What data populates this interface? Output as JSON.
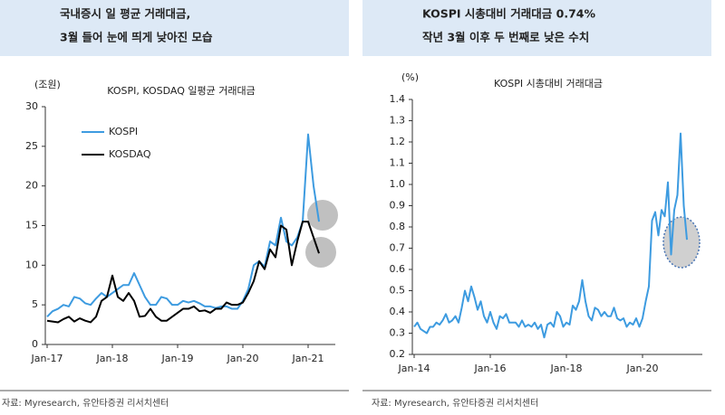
{
  "headers": [
    [
      "국내증시 일 평균 거래대금,",
      "3월 들어 눈에 띄게 낮아진 모습"
    ],
    [
      "KOSPI 시총대비 거래대금 0.74%",
      "작년 3월 이후 두 번째로 낮은 수치"
    ]
  ],
  "sources": [
    "자료: Myresearch, 유안타증권 리서치센터",
    "자료: Myresearch, 유안타증권 리서치센터"
  ],
  "chart_data": [
    {
      "type": "line",
      "title": "KOSPI, KOSDAQ 일평균 거래대금",
      "y_unit": "(조원)",
      "legend": "upper left",
      "categories": [
        "Jan-17",
        null,
        null,
        null,
        null,
        null,
        null,
        null,
        null,
        null,
        null,
        null,
        "Jan-18",
        null,
        null,
        null,
        null,
        null,
        null,
        null,
        null,
        null,
        null,
        null,
        "Jan-19",
        null,
        null,
        null,
        null,
        null,
        null,
        null,
        null,
        null,
        null,
        null,
        "Jan-20",
        null,
        null,
        null,
        null,
        null,
        null,
        null,
        null,
        null,
        null,
        null,
        "Jan-21",
        null,
        null
      ],
      "ylim": [
        0,
        30
      ],
      "yticks": [
        0,
        5,
        10,
        15,
        20,
        25,
        30
      ],
      "series": [
        {
          "name": "KOSPI",
          "color": "#3d9be0",
          "values": [
            3.5,
            4.2,
            4.5,
            5.0,
            4.8,
            6.0,
            5.8,
            5.2,
            5.0,
            5.8,
            6.5,
            6.0,
            6.5,
            7.0,
            7.5,
            7.5,
            9.0,
            7.5,
            6.0,
            5.0,
            5.0,
            6.0,
            5.8,
            5.0,
            5.0,
            5.5,
            5.3,
            5.5,
            5.2,
            4.8,
            4.8,
            4.6,
            4.8,
            4.8,
            4.5,
            4.5,
            5.5,
            7.0,
            10.0,
            10.5,
            9.8,
            13.0,
            12.5,
            16.0,
            13.0,
            12.5,
            13.5,
            15.5,
            26.5,
            20.0,
            15.5
          ]
        },
        {
          "name": "KOSDAQ",
          "color": "#000000",
          "values": [
            3.0,
            2.9,
            2.8,
            3.2,
            3.5,
            2.9,
            3.3,
            3.0,
            2.8,
            3.5,
            5.5,
            6.0,
            8.7,
            6.0,
            5.5,
            6.5,
            5.5,
            3.5,
            3.6,
            4.5,
            3.5,
            3.0,
            3.0,
            3.5,
            4.0,
            4.5,
            4.5,
            4.8,
            4.2,
            4.3,
            4.0,
            4.5,
            4.5,
            5.3,
            5.0,
            5.0,
            5.3,
            6.5,
            8.0,
            10.5,
            9.5,
            12.0,
            11.0,
            15.0,
            14.5,
            10.0,
            13.0,
            15.5,
            15.5,
            13.5,
            11.5
          ]
        }
      ]
    },
    {
      "type": "line",
      "title": "KOSPI 시총대비 거래대금",
      "y_unit": "(%)",
      "categories": [
        "Jan-14",
        null,
        null,
        null,
        null,
        null,
        null,
        null,
        null,
        null,
        null,
        null,
        null,
        null,
        null,
        null,
        null,
        null,
        null,
        null,
        null,
        null,
        null,
        null,
        "Jan-16",
        null,
        null,
        null,
        null,
        null,
        null,
        null,
        null,
        null,
        null,
        null,
        null,
        null,
        null,
        null,
        null,
        null,
        null,
        null,
        null,
        null,
        null,
        null,
        "Jan-18",
        null,
        null,
        null,
        null,
        null,
        null,
        null,
        null,
        null,
        null,
        null,
        null,
        null,
        null,
        null,
        null,
        null,
        null,
        null,
        null,
        null,
        null,
        null,
        "Jan-20",
        null,
        null,
        null,
        null,
        null,
        null,
        null,
        null,
        null,
        null,
        null,
        null,
        null,
        null
      ],
      "ylim": [
        0.2,
        1.4
      ],
      "yticks": [
        0.2,
        0.3,
        0.4,
        0.5,
        0.6,
        0.7,
        0.8,
        0.9,
        {
          "value": 1,
          "label": "1.0"
        },
        1.1,
        1.2,
        1.3,
        1.4
      ],
      "color": "#3d9be0",
      "values": [
        0.33,
        0.35,
        0.32,
        0.31,
        0.3,
        0.33,
        0.33,
        0.35,
        0.34,
        0.36,
        0.39,
        0.35,
        0.36,
        0.38,
        0.35,
        0.42,
        0.5,
        0.45,
        0.52,
        0.47,
        0.41,
        0.45,
        0.38,
        0.35,
        0.4,
        0.35,
        0.32,
        0.38,
        0.37,
        0.39,
        0.35,
        0.35,
        0.35,
        0.33,
        0.36,
        0.33,
        0.34,
        0.33,
        0.35,
        0.32,
        0.34,
        0.28,
        0.34,
        0.35,
        0.33,
        0.4,
        0.38,
        0.33,
        0.35,
        0.34,
        0.43,
        0.41,
        0.45,
        0.55,
        0.45,
        0.38,
        0.36,
        0.42,
        0.41,
        0.38,
        0.4,
        0.38,
        0.38,
        0.42,
        0.37,
        0.36,
        0.37,
        0.33,
        0.35,
        0.34,
        0.37,
        0.33,
        0.37,
        0.45,
        0.52,
        0.83,
        0.87,
        0.76,
        0.88,
        0.85,
        1.01,
        0.67,
        0.88,
        0.95,
        1.24,
        0.9,
        0.74
      ]
    }
  ]
}
